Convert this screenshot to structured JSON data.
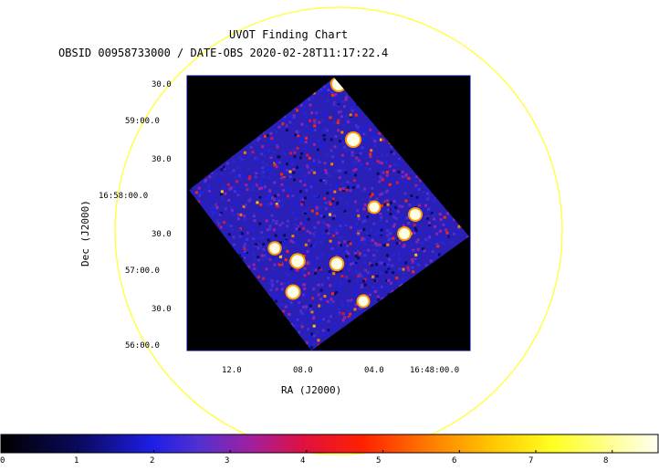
{
  "header": {
    "title": "UVOT Finding Chart",
    "subtitle": "OBSID 00958733000 / DATE-OBS 2020-02-28T11:17:22.4"
  },
  "axes": {
    "xlabel": "RA (J2000)",
    "ylabel": "Dec (J2000)",
    "x_ticks": [
      "12.0",
      "08.0",
      "04.0",
      "16:48:00.0"
    ],
    "y_ticks": [
      "30.0",
      "59:00.0",
      "30.0",
      "16:58:00.0",
      "30.0",
      "57:00.0",
      "30.0",
      "56:00.0"
    ]
  },
  "colorbar": {
    "ticks": [
      "0",
      "1",
      "2",
      "3",
      "4",
      "5",
      "6",
      "7",
      "8"
    ],
    "min": 0,
    "max": 8.6
  },
  "colors": {
    "circle": "#ffff33",
    "frame": "#00008b",
    "image_bg": "#000000"
  },
  "sources": [
    {
      "ra_label": "",
      "brightness": 1.0
    },
    {
      "ra_label": "",
      "brightness": 1.0
    },
    {
      "ra_label": "",
      "brightness": 0.95
    },
    {
      "ra_label": "",
      "brightness": 0.9
    },
    {
      "ra_label": "",
      "brightness": 0.85
    },
    {
      "ra_label": "",
      "brightness": 0.8
    },
    {
      "ra_label": "",
      "brightness": 0.8
    },
    {
      "ra_label": "",
      "brightness": 0.75
    },
    {
      "ra_label": "",
      "brightness": 0.7
    },
    {
      "ra_label": "",
      "brightness": 0.7
    }
  ]
}
